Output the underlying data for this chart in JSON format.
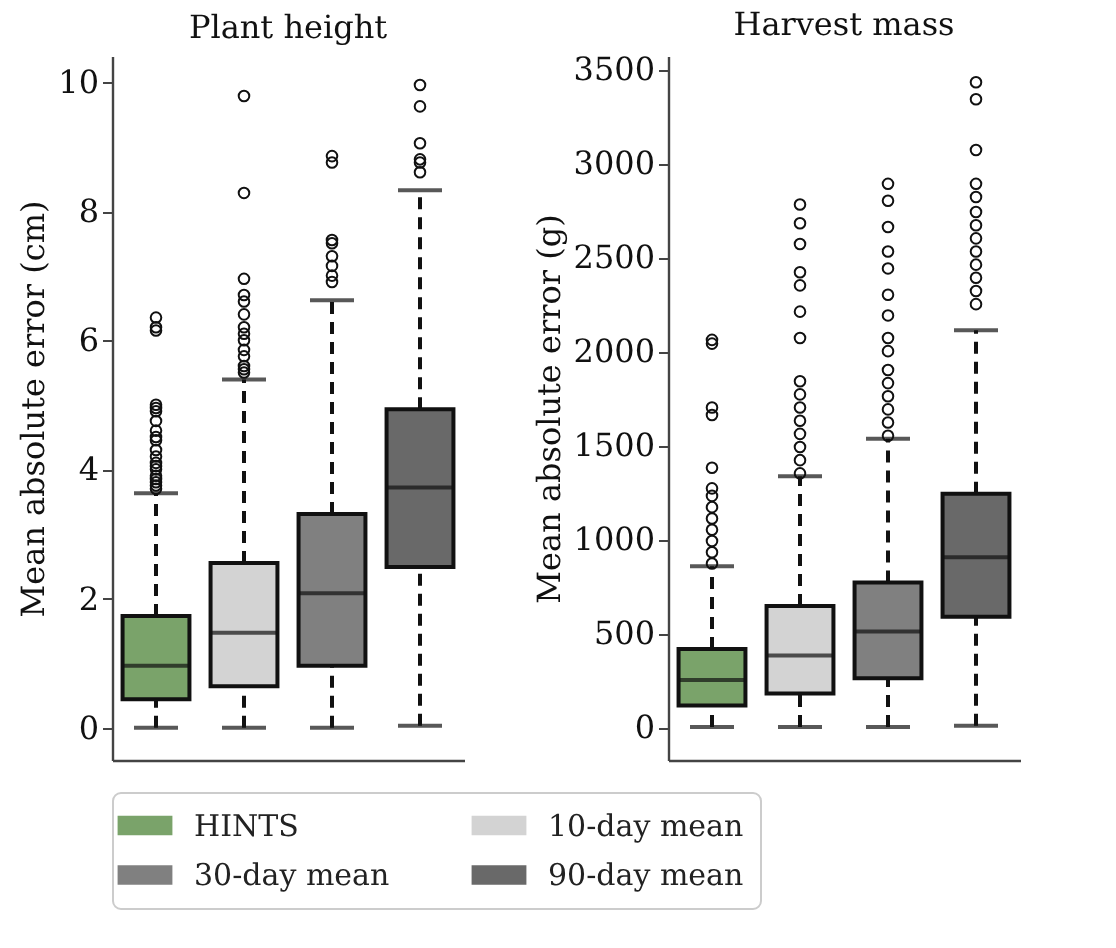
{
  "chart_data": [
    {
      "type": "box",
      "title": "Plant height",
      "ylabel": "Mean absolute error (cm)",
      "categories": [
        null,
        null,
        null,
        null
      ],
      "ylim": [
        -0.5,
        10.4
      ],
      "yticks": [
        0,
        2,
        4,
        6,
        8,
        10
      ],
      "grid": false,
      "legend": "bottom",
      "marker": "circle",
      "line_style": "dashed",
      "series": [
        {
          "name": "HINTS",
          "color": "#7aa36a",
          "boxes": [
            {
              "low": 0,
              "q1": 0.44,
              "median": 0.96,
              "q3": 1.73,
              "high": 3.63,
              "outliers": [
                3.7,
                3.75,
                3.8,
                3.85,
                3.9,
                4.0,
                4.05,
                4.1,
                4.2,
                4.3,
                4.45,
                4.5,
                4.6,
                4.75,
                4.9,
                4.95,
                5.0,
                6.15,
                6.2,
                6.35
              ]
            },
            null,
            null,
            null
          ]
        },
        {
          "name": "10-day mean",
          "color": "#d3d3d3",
          "boxes": [
            null,
            {
              "low": 0,
              "q1": 0.64,
              "median": 1.47,
              "q3": 2.55,
              "high": 5.39,
              "outliers": [
                5.5,
                5.55,
                5.6,
                5.75,
                5.85,
                6.0,
                6.1,
                6.2,
                6.4,
                6.6,
                6.7,
                6.95,
                8.28,
                9.78
              ]
            },
            null,
            null
          ]
        },
        {
          "name": "30-day mean",
          "color": "#808080",
          "boxes": [
            null,
            null,
            {
              "low": 0,
              "q1": 0.96,
              "median": 2.08,
              "q3": 3.31,
              "high": 6.62,
              "outliers": [
                6.9,
                7.0,
                7.15,
                7.3,
                7.5,
                7.55,
                8.75,
                8.85
              ]
            },
            null
          ]
        },
        {
          "name": "90-day mean",
          "color": "#696969",
          "boxes": [
            null,
            null,
            null,
            {
              "low": 0.03,
              "q1": 2.49,
              "median": 3.72,
              "q3": 4.93,
              "high": 8.32,
              "outliers": [
                8.6,
                8.75,
                8.8,
                9.05,
                9.62,
                9.95
              ]
            }
          ]
        }
      ]
    },
    {
      "type": "box",
      "title": "Harvest mass",
      "ylabel": "Mean absolute error (g)",
      "categories": [
        null,
        null,
        null,
        null
      ],
      "ylim": [
        -175,
        3570
      ],
      "yticks": [
        0,
        500,
        1000,
        1500,
        2000,
        2500,
        3000,
        3500
      ],
      "grid": false,
      "marker": "circle",
      "line_style": "dashed",
      "series": [
        {
          "name": "HINTS",
          "color": "#7aa36a",
          "boxes": [
            {
              "low": 0,
              "q1": 115,
              "median": 250,
              "q3": 415,
              "high": 856,
              "outliers": [
                870,
                930,
                990,
                1050,
                1110,
                1170,
                1230,
                1270,
                1380,
                1660,
                1700,
                2040,
                2060
              ]
            },
            null,
            null,
            null
          ]
        },
        {
          "name": "10-day mean",
          "color": "#d3d3d3",
          "boxes": [
            null,
            {
              "low": 0,
              "q1": 179,
              "median": 381,
              "q3": 644,
              "high": 1335,
              "outliers": [
                1350,
                1420,
                1490,
                1560,
                1630,
                1700,
                1770,
                1840,
                2070,
                2210,
                2350,
                2420,
                2570,
                2680,
                2780
              ]
            },
            null,
            null
          ]
        },
        {
          "name": "30-day mean",
          "color": "#808080",
          "boxes": [
            null,
            null,
            {
              "low": 0,
              "q1": 260,
              "median": 509,
              "q3": 769,
              "high": 1534,
              "outliers": [
                1550,
                1620,
                1690,
                1760,
                1830,
                1900,
                2000,
                2070,
                2190,
                2300,
                2440,
                2530,
                2660,
                2800,
                2890
              ]
            },
            null
          ]
        },
        {
          "name": "90-day mean",
          "color": "#696969",
          "boxes": [
            null,
            null,
            null,
            {
              "low": 7,
              "q1": 587,
              "median": 904,
              "q3": 1241,
              "high": 2111,
              "outliers": [
                2250,
                2320,
                2390,
                2460,
                2530,
                2600,
                2670,
                2740,
                2820,
                2890,
                3070,
                3340,
                3430
              ]
            }
          ]
        }
      ]
    }
  ]
}
